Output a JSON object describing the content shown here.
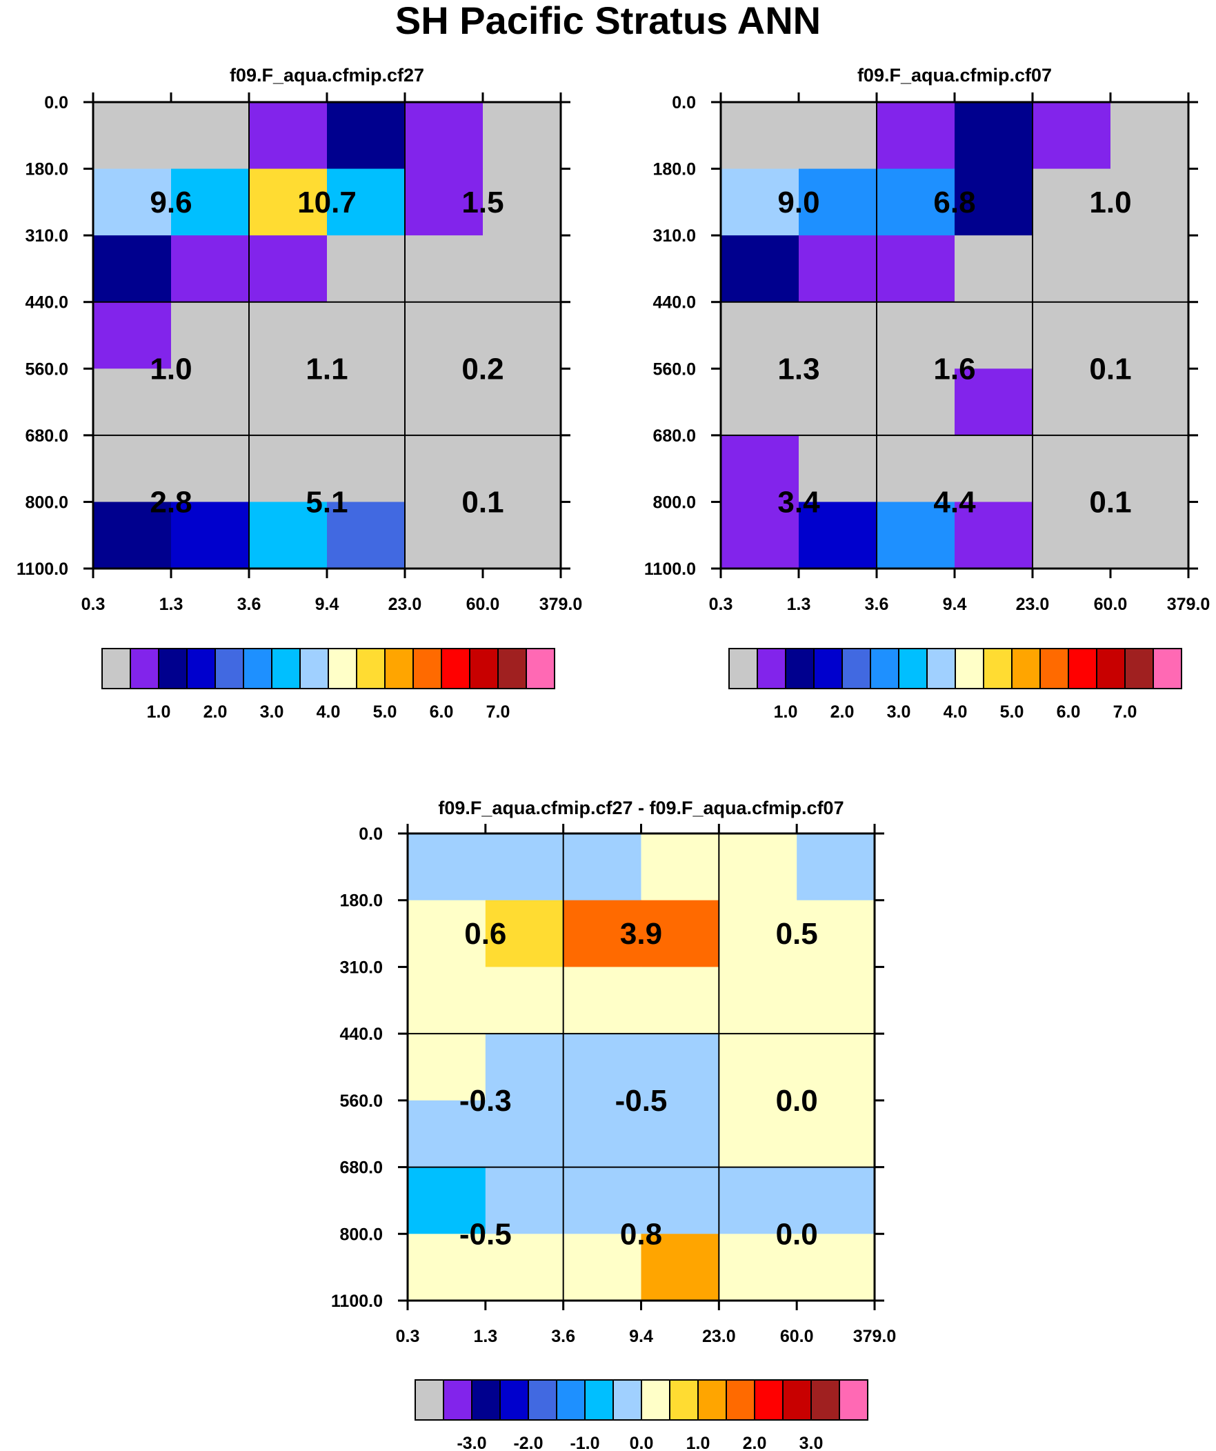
{
  "page": {
    "title": "SH Pacific Stratus ANN"
  },
  "colors": {
    "palette": [
      "#c8c8c8",
      "#8224eb",
      "#00008e",
      "#0000cd",
      "#4169e1",
      "#1e90ff",
      "#00bfff",
      "#a0d0ff",
      "#ffffc8",
      "#ffdc32",
      "#ffa500",
      "#ff6a00",
      "#ff0000",
      "#c80000",
      "#a02020",
      "#ff69b4"
    ]
  },
  "chart_data": [
    {
      "type": "heatmap",
      "title": "f09.F_aqua.cfmip.cf27",
      "x_ticks": [
        "0.3",
        "1.3",
        "3.6",
        "9.4",
        "23.0",
        "60.0",
        "379.0"
      ],
      "y_ticks": [
        "0.0",
        "180.0",
        "310.0",
        "440.0",
        "560.0",
        "680.0",
        "800.0",
        "1100.0"
      ],
      "cell_color_index": [
        [
          0,
          0,
          1,
          2,
          1,
          0
        ],
        [
          7,
          6,
          9,
          6,
          1,
          0
        ],
        [
          2,
          1,
          1,
          0,
          0,
          0
        ],
        [
          1,
          0,
          0,
          0,
          0,
          0
        ],
        [
          0,
          0,
          0,
          0,
          0,
          0
        ],
        [
          0,
          0,
          0,
          0,
          0,
          0
        ],
        [
          2,
          3,
          6,
          4,
          0,
          0
        ]
      ],
      "block_values": [
        [
          "9.6",
          "10.7",
          "1.5"
        ],
        [
          "1.0",
          "1.1",
          "0.2"
        ],
        [
          "2.8",
          "5.1",
          "0.1"
        ]
      ],
      "colorbar_labels": [
        "1.0",
        "2.0",
        "3.0",
        "4.0",
        "5.0",
        "6.0",
        "7.0"
      ]
    },
    {
      "type": "heatmap",
      "title": "f09.F_aqua.cfmip.cf07",
      "x_ticks": [
        "0.3",
        "1.3",
        "3.6",
        "9.4",
        "23.0",
        "60.0",
        "379.0"
      ],
      "y_ticks": [
        "0.0",
        "180.0",
        "310.0",
        "440.0",
        "560.0",
        "680.0",
        "800.0",
        "1100.0"
      ],
      "cell_color_index": [
        [
          0,
          0,
          1,
          2,
          1,
          0
        ],
        [
          7,
          5,
          5,
          2,
          0,
          0
        ],
        [
          2,
          1,
          1,
          0,
          0,
          0
        ],
        [
          0,
          0,
          0,
          0,
          0,
          0
        ],
        [
          0,
          0,
          0,
          1,
          0,
          0
        ],
        [
          1,
          0,
          0,
          0,
          0,
          0
        ],
        [
          1,
          3,
          5,
          1,
          0,
          0
        ]
      ],
      "block_values": [
        [
          "9.0",
          "6.8",
          "1.0"
        ],
        [
          "1.3",
          "1.6",
          "0.1"
        ],
        [
          "3.4",
          "4.4",
          "0.1"
        ]
      ],
      "colorbar_labels": [
        "1.0",
        "2.0",
        "3.0",
        "4.0",
        "5.0",
        "6.0",
        "7.0"
      ]
    },
    {
      "type": "heatmap",
      "title": "f09.F_aqua.cfmip.cf27 - f09.F_aqua.cfmip.cf07",
      "x_ticks": [
        "0.3",
        "1.3",
        "3.6",
        "9.4",
        "23.0",
        "60.0",
        "379.0"
      ],
      "y_ticks": [
        "0.0",
        "180.0",
        "310.0",
        "440.0",
        "560.0",
        "680.0",
        "800.0",
        "1100.0"
      ],
      "cell_color_index": [
        [
          7,
          7,
          7,
          8,
          8,
          7
        ],
        [
          8,
          9,
          11,
          11,
          8,
          8
        ],
        [
          8,
          8,
          8,
          8,
          8,
          8
        ],
        [
          8,
          7,
          7,
          7,
          8,
          8
        ],
        [
          7,
          7,
          7,
          7,
          8,
          8
        ],
        [
          6,
          7,
          7,
          7,
          7,
          7
        ],
        [
          8,
          8,
          8,
          10,
          8,
          8
        ]
      ],
      "block_values": [
        [
          "0.6",
          "3.9",
          "0.5"
        ],
        [
          "-0.3",
          "-0.5",
          "0.0"
        ],
        [
          "-0.5",
          "0.8",
          "0.0"
        ]
      ],
      "colorbar_labels": [
        "-3.0",
        "-2.0",
        "-1.0",
        "0.0",
        "1.0",
        "2.0",
        "3.0"
      ]
    }
  ]
}
